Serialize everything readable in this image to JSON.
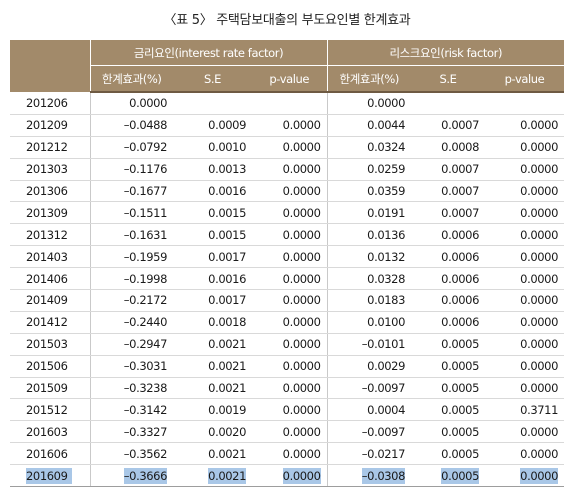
{
  "caption": "〈표 5〉 주택담보대출의 부도요인별 한계효과",
  "header": {
    "group_left": "금리요인(interest rate factor)",
    "group_right": "리스크요인(risk factor)",
    "sub": [
      "한계효과(%)",
      "S.E",
      "p-value",
      "한계효과(%)",
      "S.E",
      "p-value"
    ]
  },
  "rows": [
    {
      "period": "201206",
      "ir_me": "0.0000",
      "ir_se": "",
      "ir_p": "",
      "rf_me": "0.0000",
      "rf_se": "",
      "rf_p": ""
    },
    {
      "period": "201209",
      "ir_me": "-0.0488",
      "ir_se": "0.0009",
      "ir_p": "0.0000",
      "rf_me": "0.0044",
      "rf_se": "0.0007",
      "rf_p": "0.0000"
    },
    {
      "period": "201212",
      "ir_me": "-0.0792",
      "ir_se": "0.0010",
      "ir_p": "0.0000",
      "rf_me": "0.0324",
      "rf_se": "0.0008",
      "rf_p": "0.0000"
    },
    {
      "period": "201303",
      "ir_me": "-0.1176",
      "ir_se": "0.0013",
      "ir_p": "0.0000",
      "rf_me": "0.0259",
      "rf_se": "0.0007",
      "rf_p": "0.0000"
    },
    {
      "period": "201306",
      "ir_me": "-0.1677",
      "ir_se": "0.0016",
      "ir_p": "0.0000",
      "rf_me": "0.0359",
      "rf_se": "0.0007",
      "rf_p": "0.0000"
    },
    {
      "period": "201309",
      "ir_me": "-0.1511",
      "ir_se": "0.0015",
      "ir_p": "0.0000",
      "rf_me": "0.0191",
      "rf_se": "0.0007",
      "rf_p": "0.0000"
    },
    {
      "period": "201312",
      "ir_me": "-0.1631",
      "ir_se": "0.0015",
      "ir_p": "0.0000",
      "rf_me": "0.0136",
      "rf_se": "0.0006",
      "rf_p": "0.0000"
    },
    {
      "period": "201403",
      "ir_me": "-0.1959",
      "ir_se": "0.0017",
      "ir_p": "0.0000",
      "rf_me": "0.0132",
      "rf_se": "0.0006",
      "rf_p": "0.0000"
    },
    {
      "period": "201406",
      "ir_me": "-0.1998",
      "ir_se": "0.0016",
      "ir_p": "0.0000",
      "rf_me": "0.0328",
      "rf_se": "0.0006",
      "rf_p": "0.0000"
    },
    {
      "period": "201409",
      "ir_me": "-0.2172",
      "ir_se": "0.0017",
      "ir_p": "0.0000",
      "rf_me": "0.0183",
      "rf_se": "0.0006",
      "rf_p": "0.0000"
    },
    {
      "period": "201412",
      "ir_me": "-0.2440",
      "ir_se": "0.0018",
      "ir_p": "0.0000",
      "rf_me": "0.0100",
      "rf_se": "0.0006",
      "rf_p": "0.0000"
    },
    {
      "period": "201503",
      "ir_me": "-0.2947",
      "ir_se": "0.0021",
      "ir_p": "0.0000",
      "rf_me": "-0.0101",
      "rf_se": "0.0005",
      "rf_p": "0.0000"
    },
    {
      "period": "201506",
      "ir_me": "-0.3031",
      "ir_se": "0.0021",
      "ir_p": "0.0000",
      "rf_me": "0.0029",
      "rf_se": "0.0005",
      "rf_p": "0.0000"
    },
    {
      "period": "201509",
      "ir_me": "-0.3238",
      "ir_se": "0.0021",
      "ir_p": "0.0000",
      "rf_me": "-0.0097",
      "rf_se": "0.0005",
      "rf_p": "0.0000"
    },
    {
      "period": "201512",
      "ir_me": "-0.3142",
      "ir_se": "0.0019",
      "ir_p": "0.0000",
      "rf_me": "0.0004",
      "rf_se": "0.0005",
      "rf_p": "0.3711"
    },
    {
      "period": "201603",
      "ir_me": "-0.3327",
      "ir_se": "0.0020",
      "ir_p": "0.0000",
      "rf_me": "-0.0097",
      "rf_se": "0.0005",
      "rf_p": "0.0000"
    },
    {
      "period": "201606",
      "ir_me": "-0.3562",
      "ir_se": "0.0021",
      "ir_p": "0.0000",
      "rf_me": "-0.0217",
      "rf_se": "0.0005",
      "rf_p": "0.0000"
    },
    {
      "period": "201609",
      "ir_me": "-0.3666",
      "ir_se": "0.0021",
      "ir_p": "0.0000",
      "rf_me": "-0.0308",
      "rf_se": "0.0005",
      "rf_p": "0.0000"
    }
  ],
  "colors": {
    "header_bg": "#a28a6a",
    "header_text": "#ffffff",
    "selection_highlight": "#a9c7e7"
  }
}
